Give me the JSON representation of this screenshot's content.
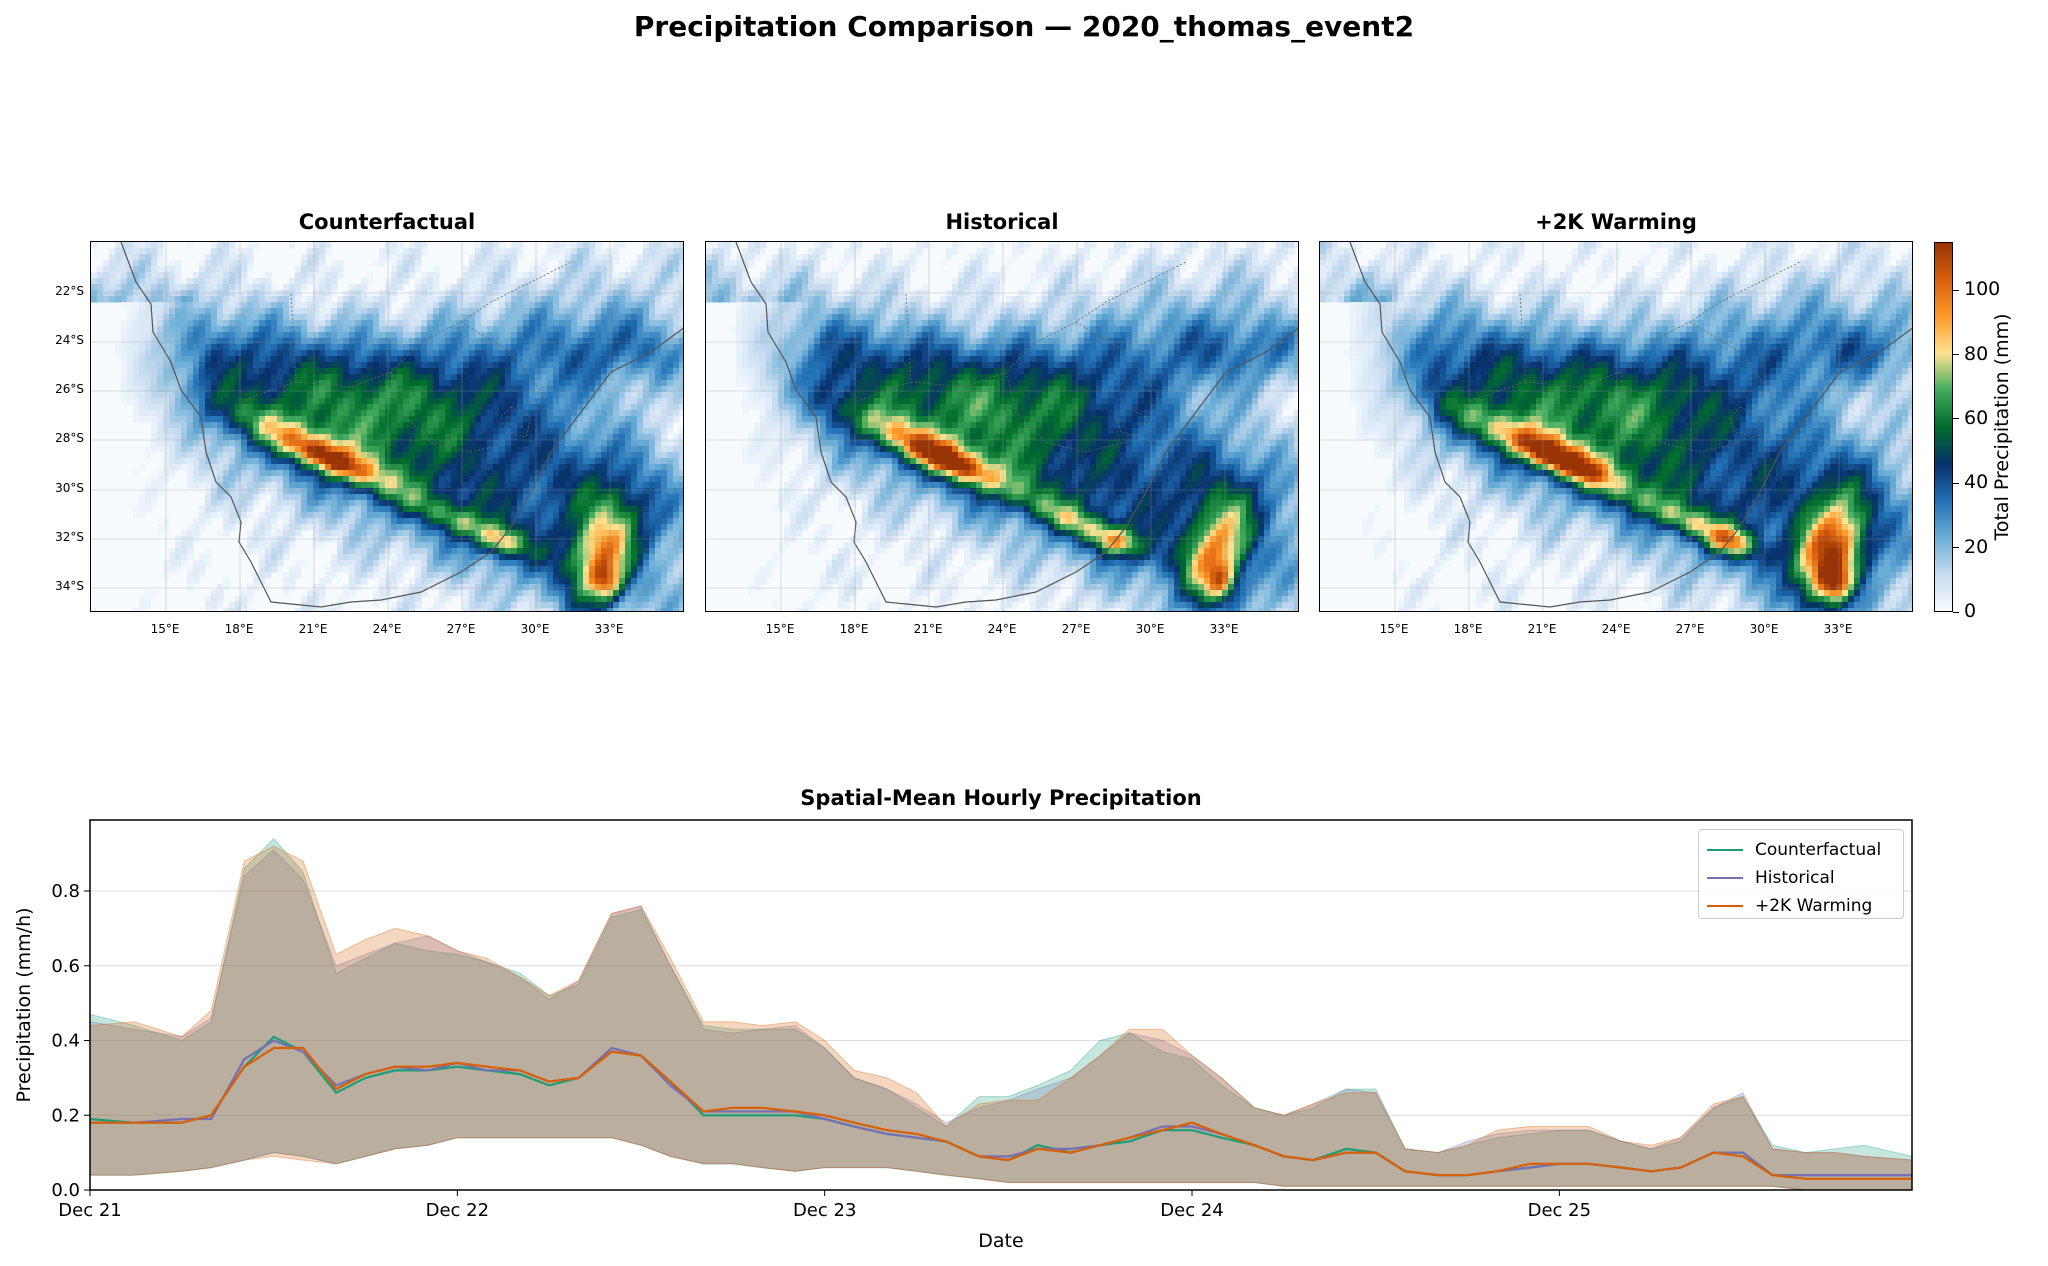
{
  "suptitle": "Precipitation Comparison — 2020_thomas_event2",
  "maps": {
    "panels": [
      {
        "title": "Counterfactual",
        "intensity": 0.92,
        "east_blob": 1.0
      },
      {
        "title": "Historical",
        "intensity": 1.0,
        "east_blob": 0.95
      },
      {
        "title": "+2K Warming",
        "intensity": 1.1,
        "east_blob": 1.25
      }
    ],
    "lat_ticks": [
      "22°S",
      "24°S",
      "26°S",
      "28°S",
      "30°S",
      "32°S",
      "34°S"
    ],
    "lon_ticks": [
      "15°E",
      "18°E",
      "21°E",
      "24°E",
      "27°E",
      "30°E",
      "33°E"
    ],
    "colorbar": {
      "label": "Total Precipitation (mm)",
      "ticks": [
        "0",
        "20",
        "40",
        "60",
        "80",
        "100"
      ],
      "range": [
        0,
        115
      ],
      "colors": [
        "#f7fbff",
        "#c6dbef",
        "#6baed6",
        "#2171b5",
        "#08306b",
        "#006d2c",
        "#41ab5d",
        "#fee391",
        "#fe9929",
        "#d95f0e",
        "#993404"
      ]
    }
  },
  "chart_data": {
    "type": "line",
    "title": "Spatial-Mean Hourly Precipitation",
    "xlabel": "Date",
    "ylabel": "Precipitation (mm/h)",
    "x_ticks": [
      "Dec 21",
      "Dec 22",
      "Dec 23",
      "Dec 24",
      "Dec 25"
    ],
    "y_ticks": [
      "0.0",
      "0.2",
      "0.4",
      "0.6",
      "0.8"
    ],
    "xlim": [
      0,
      4.96
    ],
    "ylim": [
      0,
      0.99
    ],
    "grid": true,
    "legend_position": "top-right",
    "x_days": [
      0.0,
      0.12,
      0.25,
      0.33,
      0.42,
      0.5,
      0.58,
      0.67,
      0.75,
      0.83,
      0.92,
      1.0,
      1.08,
      1.17,
      1.25,
      1.33,
      1.42,
      1.5,
      1.58,
      1.67,
      1.75,
      1.83,
      1.92,
      2.0,
      2.08,
      2.17,
      2.25,
      2.33,
      2.42,
      2.5,
      2.58,
      2.67,
      2.75,
      2.83,
      2.92,
      3.0,
      3.08,
      3.17,
      3.25,
      3.33,
      3.42,
      3.5,
      3.58,
      3.67,
      3.75,
      3.83,
      3.92,
      4.0,
      4.08,
      4.17,
      4.25,
      4.33,
      4.42,
      4.5,
      4.58,
      4.67,
      4.75,
      4.83,
      4.96
    ],
    "series": [
      {
        "name": "Counterfactual",
        "color": "#1b9e77",
        "mean": [
          0.19,
          0.18,
          0.18,
          0.2,
          0.33,
          0.41,
          0.37,
          0.26,
          0.3,
          0.32,
          0.32,
          0.33,
          0.32,
          0.31,
          0.28,
          0.3,
          0.37,
          0.36,
          0.29,
          0.2,
          0.2,
          0.2,
          0.2,
          0.19,
          0.17,
          0.15,
          0.14,
          0.13,
          0.09,
          0.08,
          0.12,
          0.1,
          0.12,
          0.13,
          0.16,
          0.16,
          0.14,
          0.12,
          0.09,
          0.08,
          0.11,
          0.1,
          0.05,
          0.04,
          0.04,
          0.05,
          0.06,
          0.07,
          0.07,
          0.06,
          0.05,
          0.06,
          0.1,
          0.1,
          0.04,
          0.04,
          0.04,
          0.04,
          0.04
        ],
        "upper": [
          0.47,
          0.44,
          0.4,
          0.45,
          0.86,
          0.94,
          0.85,
          0.58,
          0.62,
          0.66,
          0.64,
          0.63,
          0.61,
          0.58,
          0.52,
          0.55,
          0.73,
          0.75,
          0.6,
          0.44,
          0.43,
          0.43,
          0.43,
          0.38,
          0.3,
          0.27,
          0.22,
          0.17,
          0.25,
          0.25,
          0.28,
          0.32,
          0.4,
          0.42,
          0.37,
          0.35,
          0.28,
          0.22,
          0.2,
          0.22,
          0.27,
          0.27,
          0.11,
          0.1,
          0.12,
          0.14,
          0.15,
          0.16,
          0.16,
          0.13,
          0.11,
          0.13,
          0.22,
          0.25,
          0.12,
          0.1,
          0.11,
          0.12,
          0.09
        ],
        "lower": [
          0.04,
          0.04,
          0.05,
          0.06,
          0.08,
          0.1,
          0.09,
          0.07,
          0.09,
          0.11,
          0.12,
          0.14,
          0.14,
          0.14,
          0.14,
          0.14,
          0.14,
          0.12,
          0.09,
          0.07,
          0.07,
          0.06,
          0.05,
          0.06,
          0.06,
          0.06,
          0.05,
          0.04,
          0.03,
          0.02,
          0.02,
          0.02,
          0.02,
          0.02,
          0.02,
          0.02,
          0.02,
          0.02,
          0.01,
          0.01,
          0.01,
          0.01,
          0.01,
          0.01,
          0.01,
          0.01,
          0.01,
          0.01,
          0.01,
          0.01,
          0.01,
          0.01,
          0.01,
          0.01,
          0.01,
          0.0,
          0.0,
          0.0,
          0.0
        ]
      },
      {
        "name": "Historical",
        "color": "#7570b3",
        "mean": [
          0.18,
          0.18,
          0.19,
          0.19,
          0.35,
          0.4,
          0.37,
          0.28,
          0.31,
          0.33,
          0.32,
          0.34,
          0.32,
          0.32,
          0.29,
          0.3,
          0.38,
          0.36,
          0.28,
          0.21,
          0.21,
          0.21,
          0.21,
          0.19,
          0.17,
          0.15,
          0.14,
          0.13,
          0.09,
          0.09,
          0.11,
          0.11,
          0.12,
          0.14,
          0.17,
          0.17,
          0.15,
          0.12,
          0.09,
          0.08,
          0.1,
          0.1,
          0.05,
          0.04,
          0.04,
          0.05,
          0.06,
          0.07,
          0.07,
          0.06,
          0.05,
          0.06,
          0.1,
          0.1,
          0.04,
          0.04,
          0.04,
          0.04,
          0.04
        ],
        "upper": [
          0.45,
          0.43,
          0.41,
          0.46,
          0.84,
          0.91,
          0.83,
          0.6,
          0.63,
          0.66,
          0.68,
          0.64,
          0.61,
          0.57,
          0.51,
          0.56,
          0.74,
          0.76,
          0.6,
          0.43,
          0.42,
          0.43,
          0.44,
          0.38,
          0.3,
          0.27,
          0.23,
          0.18,
          0.22,
          0.24,
          0.27,
          0.3,
          0.36,
          0.42,
          0.4,
          0.36,
          0.3,
          0.22,
          0.2,
          0.23,
          0.27,
          0.26,
          0.11,
          0.1,
          0.13,
          0.15,
          0.16,
          0.16,
          0.16,
          0.13,
          0.11,
          0.14,
          0.22,
          0.26,
          0.11,
          0.1,
          0.1,
          0.09,
          0.08
        ],
        "lower": [
          0.04,
          0.04,
          0.05,
          0.06,
          0.08,
          0.1,
          0.09,
          0.07,
          0.09,
          0.11,
          0.12,
          0.14,
          0.14,
          0.14,
          0.14,
          0.14,
          0.14,
          0.12,
          0.09,
          0.07,
          0.07,
          0.06,
          0.05,
          0.06,
          0.06,
          0.06,
          0.05,
          0.04,
          0.03,
          0.02,
          0.02,
          0.02,
          0.02,
          0.02,
          0.02,
          0.02,
          0.02,
          0.02,
          0.01,
          0.01,
          0.01,
          0.01,
          0.01,
          0.01,
          0.01,
          0.01,
          0.01,
          0.01,
          0.01,
          0.01,
          0.01,
          0.01,
          0.01,
          0.01,
          0.01,
          0.0,
          0.0,
          0.0,
          0.0
        ]
      },
      {
        "name": "+2K Warming",
        "color": "#d95f02",
        "mean": [
          0.18,
          0.18,
          0.18,
          0.2,
          0.33,
          0.38,
          0.38,
          0.27,
          0.31,
          0.33,
          0.33,
          0.34,
          0.33,
          0.32,
          0.29,
          0.3,
          0.37,
          0.36,
          0.29,
          0.21,
          0.22,
          0.22,
          0.21,
          0.2,
          0.18,
          0.16,
          0.15,
          0.13,
          0.09,
          0.08,
          0.11,
          0.1,
          0.12,
          0.14,
          0.16,
          0.18,
          0.15,
          0.12,
          0.09,
          0.08,
          0.1,
          0.1,
          0.05,
          0.04,
          0.04,
          0.05,
          0.07,
          0.07,
          0.07,
          0.06,
          0.05,
          0.06,
          0.1,
          0.09,
          0.04,
          0.03,
          0.03,
          0.03,
          0.03
        ],
        "upper": [
          0.44,
          0.45,
          0.41,
          0.48,
          0.88,
          0.92,
          0.88,
          0.63,
          0.67,
          0.7,
          0.68,
          0.64,
          0.62,
          0.57,
          0.52,
          0.56,
          0.74,
          0.76,
          0.62,
          0.45,
          0.45,
          0.44,
          0.45,
          0.4,
          0.32,
          0.3,
          0.26,
          0.17,
          0.23,
          0.24,
          0.24,
          0.3,
          0.36,
          0.43,
          0.43,
          0.36,
          0.3,
          0.22,
          0.2,
          0.23,
          0.26,
          0.26,
          0.11,
          0.1,
          0.12,
          0.16,
          0.17,
          0.17,
          0.17,
          0.13,
          0.12,
          0.14,
          0.23,
          0.25,
          0.11,
          0.1,
          0.1,
          0.09,
          0.08
        ],
        "lower": [
          0.04,
          0.04,
          0.05,
          0.06,
          0.08,
          0.09,
          0.08,
          0.07,
          0.09,
          0.11,
          0.12,
          0.14,
          0.14,
          0.14,
          0.14,
          0.14,
          0.14,
          0.12,
          0.09,
          0.07,
          0.07,
          0.06,
          0.05,
          0.06,
          0.06,
          0.06,
          0.05,
          0.04,
          0.03,
          0.02,
          0.02,
          0.02,
          0.02,
          0.02,
          0.02,
          0.02,
          0.02,
          0.02,
          0.01,
          0.01,
          0.01,
          0.01,
          0.01,
          0.01,
          0.01,
          0.01,
          0.01,
          0.01,
          0.01,
          0.01,
          0.01,
          0.01,
          0.01,
          0.01,
          0.01,
          0.0,
          0.0,
          0.0,
          0.0
        ]
      }
    ]
  }
}
